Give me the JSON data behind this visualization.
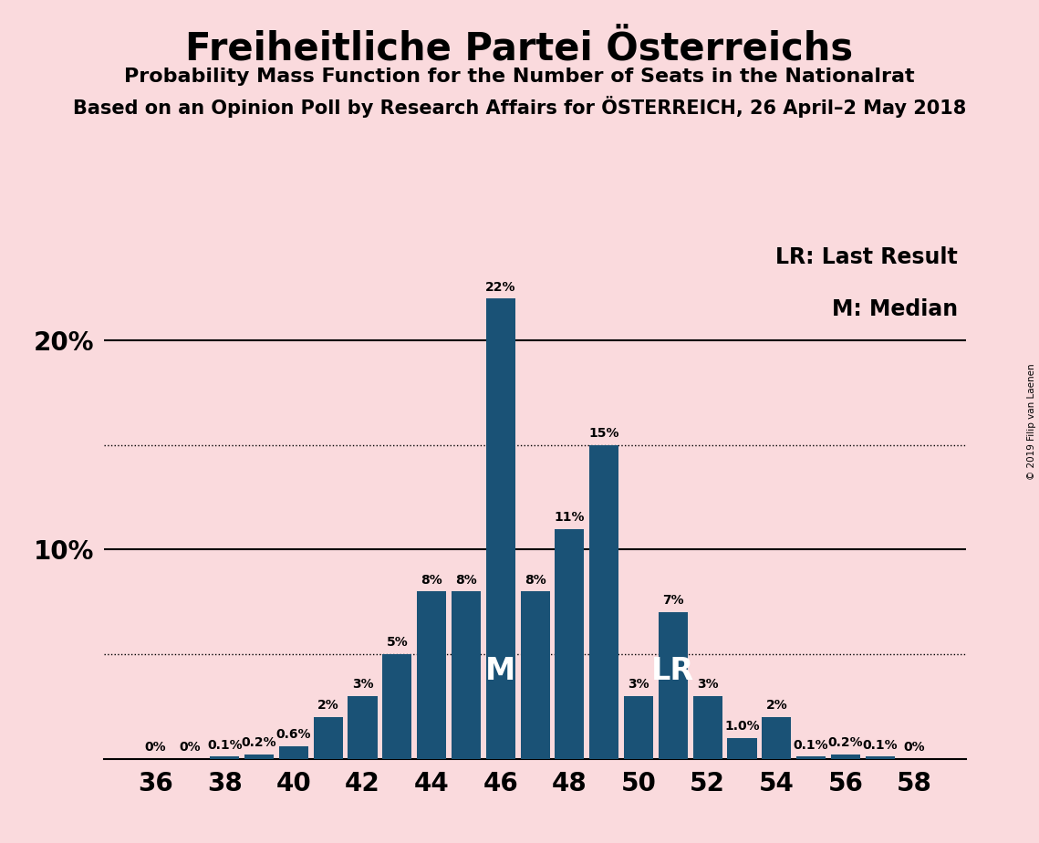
{
  "title": "Freiheitliche Partei Österreichs",
  "subtitle1": "Probability Mass Function for the Number of Seats in the Nationalrat",
  "subtitle2": "Based on an Opinion Poll by Research Affairs for ÖSTERREICH, 26 April–2 May 2018",
  "legend_lr": "LR: Last Result",
  "legend_m": "M: Median",
  "watermark": "© 2019 Filip van Laenen",
  "seats": [
    36,
    37,
    38,
    39,
    40,
    41,
    42,
    43,
    44,
    45,
    46,
    47,
    48,
    49,
    50,
    51,
    52,
    53,
    54,
    55,
    56,
    57,
    58
  ],
  "probabilities": [
    0.0,
    0.0,
    0.1,
    0.2,
    0.6,
    2.0,
    3.0,
    5.0,
    8.0,
    8.0,
    22.0,
    8.0,
    11.0,
    15.0,
    3.0,
    7.0,
    3.0,
    1.0,
    2.0,
    0.1,
    0.2,
    0.1,
    0.0
  ],
  "labels": [
    "0%",
    "0%",
    "0.1%",
    "0.2%",
    "0.6%",
    "2%",
    "3%",
    "5%",
    "8%",
    "8%",
    "22%",
    "8%",
    "11%",
    "15%",
    "3%",
    "7%",
    "3%",
    "1.0%",
    "2%",
    "0.1%",
    "0.2%",
    "0.1%",
    "0%"
  ],
  "bar_color": "#1a5276",
  "background_color": "#fadadd",
  "median_seat": 46,
  "last_result_seat": 51,
  "shown_xticks": [
    36,
    38,
    40,
    42,
    44,
    46,
    48,
    50,
    52,
    54,
    56,
    58
  ],
  "hlines_solid": [
    10.0,
    20.0
  ],
  "hlines_dotted": [
    5.0,
    15.0
  ],
  "ylim": [
    0,
    25
  ],
  "xlim": [
    34.5,
    59.5
  ]
}
